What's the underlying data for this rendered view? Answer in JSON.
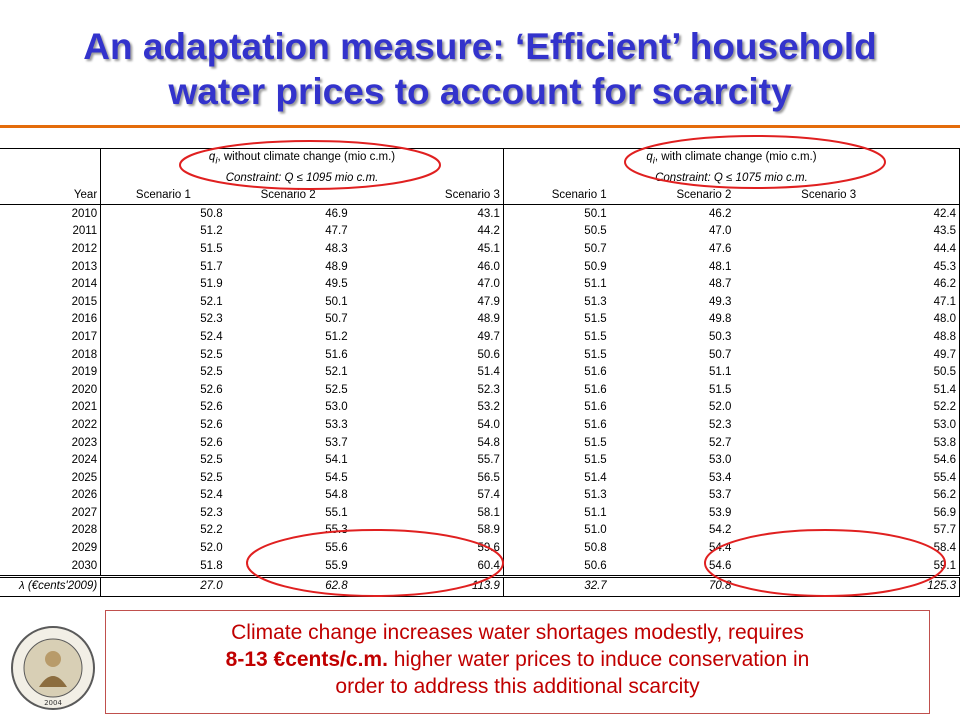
{
  "title": {
    "line1": "An adaptation measure: ‘Efficient’ household",
    "line2": "water prices to account for scarcity"
  },
  "table": {
    "group_left": {
      "header_prefix": "q",
      "header_sub": "i",
      "header_text": ", without climate change (mio c.m.)",
      "constraint": "Constraint: Q ≤ 1095 mio c.m."
    },
    "group_right": {
      "header_prefix": "q",
      "header_sub": "i",
      "header_text": ", with climate change (mio c.m.)",
      "constraint": "Constraint: Q ≤ 1075 mio c.m."
    },
    "year_header": "Year",
    "scenario_headers": [
      "Scenario 1",
      "Scenario 2",
      "Scenario 3"
    ],
    "rows": [
      {
        "year": "2010",
        "left": [
          "50.8",
          "46.9",
          "43.1"
        ],
        "right": [
          "50.1",
          "46.2",
          "42.4"
        ]
      },
      {
        "year": "2011",
        "left": [
          "51.2",
          "47.7",
          "44.2"
        ],
        "right": [
          "50.5",
          "47.0",
          "43.5"
        ]
      },
      {
        "year": "2012",
        "left": [
          "51.5",
          "48.3",
          "45.1"
        ],
        "right": [
          "50.7",
          "47.6",
          "44.4"
        ]
      },
      {
        "year": "2013",
        "left": [
          "51.7",
          "48.9",
          "46.0"
        ],
        "right": [
          "50.9",
          "48.1",
          "45.3"
        ]
      },
      {
        "year": "2014",
        "left": [
          "51.9",
          "49.5",
          "47.0"
        ],
        "right": [
          "51.1",
          "48.7",
          "46.2"
        ]
      },
      {
        "year": "2015",
        "left": [
          "52.1",
          "50.1",
          "47.9"
        ],
        "right": [
          "51.3",
          "49.3",
          "47.1"
        ]
      },
      {
        "year": "2016",
        "left": [
          "52.3",
          "50.7",
          "48.9"
        ],
        "right": [
          "51.5",
          "49.8",
          "48.0"
        ]
      },
      {
        "year": "2017",
        "left": [
          "52.4",
          "51.2",
          "49.7"
        ],
        "right": [
          "51.5",
          "50.3",
          "48.8"
        ]
      },
      {
        "year": "2018",
        "left": [
          "52.5",
          "51.6",
          "50.6"
        ],
        "right": [
          "51.5",
          "50.7",
          "49.7"
        ]
      },
      {
        "year": "2019",
        "left": [
          "52.5",
          "52.1",
          "51.4"
        ],
        "right": [
          "51.6",
          "51.1",
          "50.5"
        ]
      },
      {
        "year": "2020",
        "left": [
          "52.6",
          "52.5",
          "52.3"
        ],
        "right": [
          "51.6",
          "51.5",
          "51.4"
        ]
      },
      {
        "year": "2021",
        "left": [
          "52.6",
          "53.0",
          "53.2"
        ],
        "right": [
          "51.6",
          "52.0",
          "52.2"
        ]
      },
      {
        "year": "2022",
        "left": [
          "52.6",
          "53.3",
          "54.0"
        ],
        "right": [
          "51.6",
          "52.3",
          "53.0"
        ]
      },
      {
        "year": "2023",
        "left": [
          "52.6",
          "53.7",
          "54.8"
        ],
        "right": [
          "51.5",
          "52.7",
          "53.8"
        ]
      },
      {
        "year": "2024",
        "left": [
          "52.5",
          "54.1",
          "55.7"
        ],
        "right": [
          "51.5",
          "53.0",
          "54.6"
        ]
      },
      {
        "year": "2025",
        "left": [
          "52.5",
          "54.5",
          "56.5"
        ],
        "right": [
          "51.4",
          "53.4",
          "55.4"
        ]
      },
      {
        "year": "2026",
        "left": [
          "52.4",
          "54.8",
          "57.4"
        ],
        "right": [
          "51.3",
          "53.7",
          "56.2"
        ]
      },
      {
        "year": "2027",
        "left": [
          "52.3",
          "55.1",
          "58.1"
        ],
        "right": [
          "51.1",
          "53.9",
          "56.9"
        ]
      },
      {
        "year": "2028",
        "left": [
          "52.2",
          "55.3",
          "58.9"
        ],
        "right": [
          "51.0",
          "54.2",
          "57.7"
        ]
      },
      {
        "year": "2029",
        "left": [
          "52.0",
          "55.6",
          "59.6"
        ],
        "right": [
          "50.8",
          "54.4",
          "58.4"
        ]
      },
      {
        "year": "2030",
        "left": [
          "51.8",
          "55.9",
          "60.4"
        ],
        "right": [
          "50.6",
          "54.6",
          "59.1"
        ]
      }
    ],
    "lambda_row": {
      "label": "λ (€cents'2009)",
      "left": [
        "27.0",
        "62.8",
        "113.9"
      ],
      "right": [
        "32.7",
        "70.8",
        "125.3"
      ]
    }
  },
  "callout": {
    "line1": "Climate change increases water shortages modestly, requires",
    "line2_bold": "8-13 €cents/c.m.",
    "line2_rest": " higher water prices to induce conservation in",
    "line3": "order to address this additional scarcity"
  },
  "seal": {
    "ring_text": "ΤΕΧΝΟΛΟΓΙΚΟ ΠΑΝΕΠΙΣΤΗΜΙΟ ΚΥΠΡΟΥ",
    "year": "2004"
  },
  "colors": {
    "title": "#3333cc",
    "rule": "#e46c0a",
    "oval": "#e02020",
    "callout_text": "#c00000",
    "callout_border": "#c0504d"
  }
}
